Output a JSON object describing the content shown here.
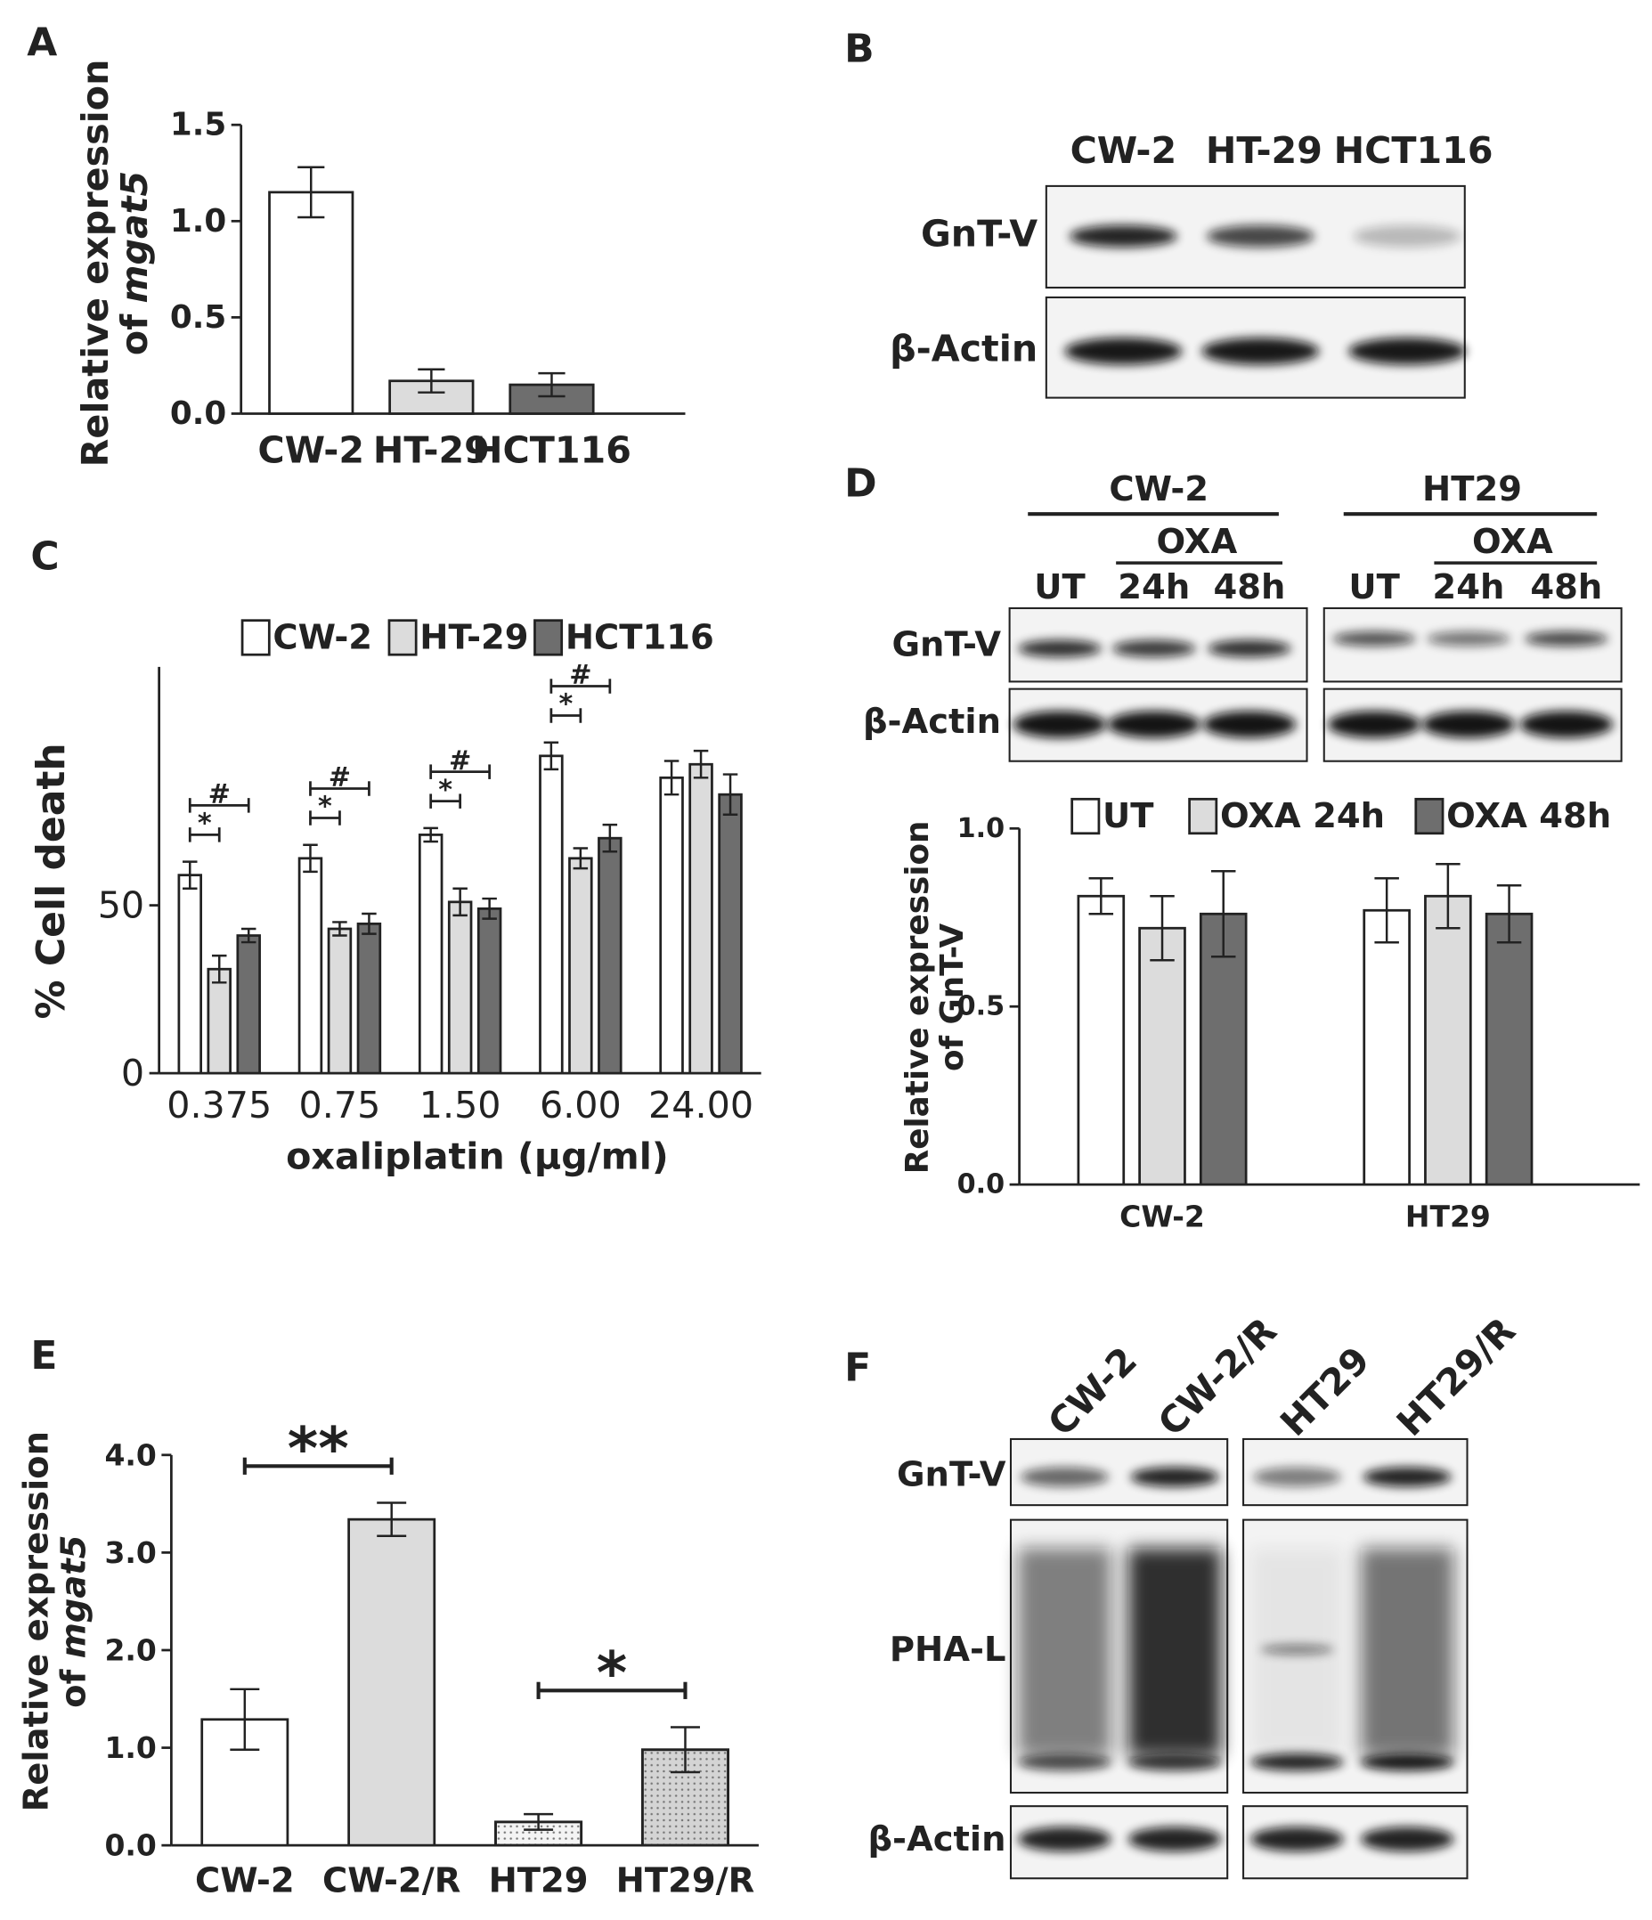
{
  "panel_labels": [
    "A",
    "B",
    "C",
    "D",
    "E",
    "F"
  ],
  "chart_data": [
    {
      "type": "bar",
      "ylabel": "Relative expression",
      "ylabel_line2": "of",
      "ylabel_italic": "mgat5",
      "categories": [
        "CW-2",
        "HT-29",
        "HCT116"
      ],
      "values": [
        1.15,
        0.17,
        0.15
      ],
      "errors": [
        0.13,
        0.06,
        0.06
      ],
      "colors": [
        "#ffffff",
        "#dcdcdc",
        "#6e6e6e"
      ],
      "ylim": [
        0,
        1.5
      ],
      "yticks": [
        {
          "value": 0,
          "label": "0.0"
        },
        0.5,
        {
          "value": 1,
          "label": "1.0"
        },
        {
          "value": 1.5,
          "label": "1.5"
        }
      ]
    },
    {
      "type": "bar",
      "ylabel": "% Cell death",
      "xlabel": "oxaliplatin (μg/ml)",
      "categories": [
        "0.375",
        "0.75",
        "1.50",
        "6.00",
        "24.00"
      ],
      "series": [
        {
          "name": "CW-2",
          "color": "#ffffff",
          "values": [
            59,
            64,
            71,
            94.5,
            88
          ],
          "errors": [
            4,
            4,
            2,
            4,
            5
          ]
        },
        {
          "name": "HT-29",
          "color": "#dcdcdc",
          "values": [
            31,
            43,
            51,
            64,
            92
          ],
          "errors": [
            4,
            2,
            4,
            3,
            4
          ]
        },
        {
          "name": "HCT116",
          "color": "#6e6e6e",
          "values": [
            41,
            44.5,
            49,
            70,
            83
          ],
          "errors": [
            2,
            3,
            3,
            4,
            6
          ]
        }
      ],
      "legend": "top",
      "brackets": [
        {
          "text": "*",
          "category": 0,
          "series": [
            0,
            1
          ]
        },
        {
          "text": "#",
          "category": 0,
          "series": [
            0,
            2
          ]
        },
        {
          "text": "*",
          "category": 1,
          "series": [
            0,
            1
          ]
        },
        {
          "text": "#",
          "category": 1,
          "series": [
            0,
            2
          ]
        },
        {
          "text": "*",
          "category": 2,
          "series": [
            0,
            1
          ]
        },
        {
          "text": "#",
          "category": 2,
          "series": [
            0,
            2
          ]
        },
        {
          "text": "*",
          "category": 3,
          "series": [
            0,
            1
          ]
        },
        {
          "text": "#",
          "category": 3,
          "series": [
            0,
            2
          ]
        }
      ],
      "ylim": [
        0,
        121
      ],
      "yticks": [
        0,
        50
      ]
    },
    {
      "type": "bar",
      "ylabel": "Relative expression",
      "ylabel_line2": "of GnT-V",
      "categories": [
        "CW-2",
        "HT29"
      ],
      "series": [
        {
          "name": "UT",
          "color": "#ffffff",
          "values": [
            0.81,
            0.77
          ],
          "errors": [
            0.05,
            0.09
          ]
        },
        {
          "name": "OXA 24h",
          "color": "#dcdcdc",
          "values": [
            0.72,
            0.81
          ],
          "errors": [
            0.09,
            0.09
          ]
        },
        {
          "name": "OXA 48h",
          "color": "#6e6e6e",
          "values": [
            0.76,
            0.76
          ],
          "errors": [
            0.12,
            0.08
          ]
        }
      ],
      "legend": "top",
      "ylim": [
        0,
        1.0
      ],
      "yticks": [
        {
          "value": 0,
          "label": "0.0"
        },
        0.5,
        {
          "value": 1,
          "label": "1.0"
        }
      ]
    },
    {
      "type": "bar",
      "ylabel": "Relative expression",
      "ylabel_line2": "of",
      "ylabel_italic": "mgat5",
      "categories": [
        "CW-2",
        "CW-2/R",
        "HT29",
        "HT29/R"
      ],
      "values": [
        1.29,
        3.34,
        0.24,
        0.98
      ],
      "errors": [
        0.31,
        0.17,
        0.08,
        0.23
      ],
      "colors": [
        "#ffffff",
        "#dcdcdc",
        "#f4f4f4",
        "#d4d4d4"
      ],
      "dotted": [
        false,
        false,
        true,
        true
      ],
      "brackets": [
        {
          "text": "**",
          "pair": [
            0,
            1
          ]
        },
        {
          "text": "*",
          "pair": [
            2,
            3
          ]
        }
      ],
      "ylim": [
        0,
        4.0
      ],
      "yticks": [
        {
          "value": 0,
          "label": "0.0"
        },
        {
          "value": 1,
          "label": "1.0"
        },
        {
          "value": 2,
          "label": "2.0"
        },
        {
          "value": 3,
          "label": "3.0"
        },
        {
          "value": 4,
          "label": "4.0"
        }
      ]
    }
  ],
  "blots": {
    "B": {
      "lanes": [
        "CW-2",
        "HT-29",
        "HCT116"
      ],
      "rows": [
        "GnT-V",
        "β-Actin"
      ]
    },
    "D": {
      "groups": [
        "CW-2",
        "HT29"
      ],
      "treatment": "OXA",
      "lanes": [
        "UT",
        "24h",
        "48h",
        "UT",
        "24h",
        "48h"
      ],
      "rows": [
        "GnT-V",
        "β-Actin"
      ]
    },
    "F": {
      "lanes": [
        "CW-2",
        "CW-2/R",
        "HT29",
        "HT29/R"
      ],
      "rows": [
        "GnT-V",
        "PHA-L",
        "β-Actin"
      ]
    }
  }
}
